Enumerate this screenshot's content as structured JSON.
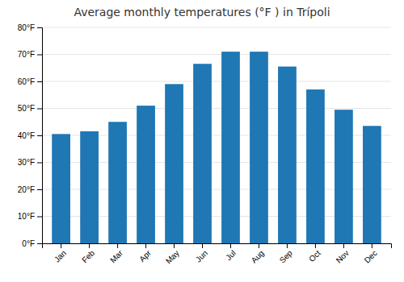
{
  "chart_data": {
    "type": "bar",
    "title": "Average monthly temperatures (°F ) in Trípoli",
    "categories": [
      "Jan",
      "Feb",
      "Mar",
      "Apr",
      "May",
      "Jun",
      "Jul",
      "Aug",
      "Sep",
      "Oct",
      "Nov",
      "Dec"
    ],
    "values": [
      40.5,
      41.5,
      45.0,
      51.0,
      59.0,
      66.5,
      71.0,
      71.0,
      65.5,
      57.0,
      49.5,
      43.5
    ],
    "ylim": [
      0,
      80
    ],
    "yticks": [
      {
        "value": 0,
        "label": "0°F"
      },
      {
        "value": 10,
        "label": "10°F"
      },
      {
        "value": 20,
        "label": "20°F"
      },
      {
        "value": 30,
        "label": "30°F"
      },
      {
        "value": 40,
        "label": "40°F"
      },
      {
        "value": 50,
        "label": "50°F"
      },
      {
        "value": 60,
        "label": "60°F"
      },
      {
        "value": 70,
        "label": "70°F"
      },
      {
        "value": 80,
        "label": "80°F"
      }
    ],
    "grid": true
  }
}
